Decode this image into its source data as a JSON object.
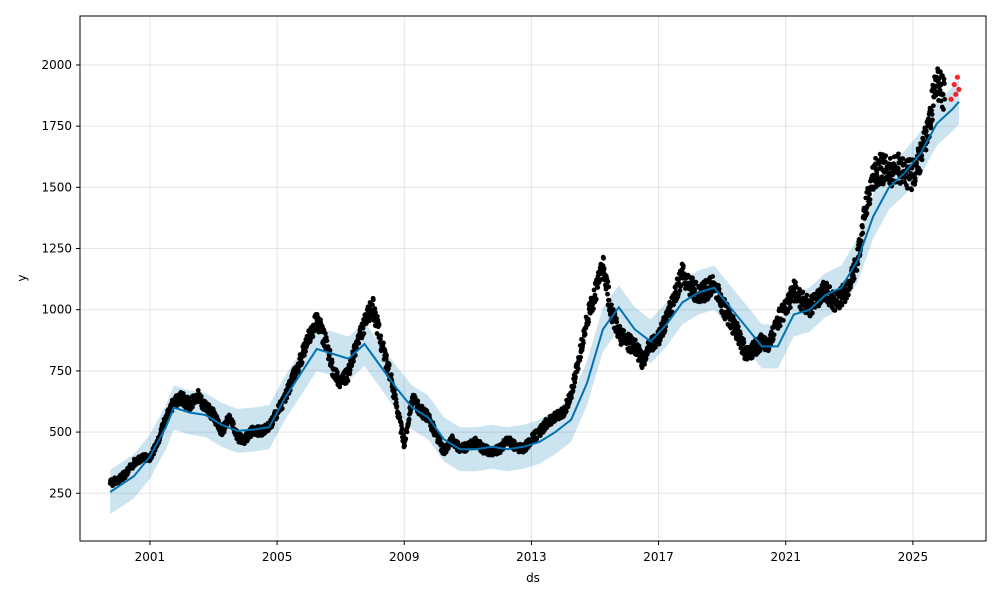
{
  "chart_data": {
    "type": "scatter",
    "title": "",
    "xlabel": "ds",
    "ylabel": "y",
    "xlim": [
      1998.8,
      2027.3
    ],
    "ylim": [
      55,
      2200
    ],
    "grid": true,
    "x_ticks": [
      "2001",
      "2005",
      "2009",
      "2013",
      "2017",
      "2021",
      "2025"
    ],
    "y_ticks": [
      "250",
      "500",
      "750",
      "1000",
      "1250",
      "1500",
      "1750",
      "2000"
    ],
    "colors": {
      "observed": "#000000",
      "forecast_points": "#ff0000",
      "trend_line": "#0072b2",
      "uncertainty_band": "#0072b2"
    },
    "series": [
      {
        "role": "observed",
        "marker": "dot",
        "points": [
          [
            1999.75,
            290
          ],
          [
            2000.0,
            305
          ],
          [
            2000.25,
            330
          ],
          [
            2000.5,
            375
          ],
          [
            2000.75,
            395
          ],
          [
            2001.0,
            395
          ],
          [
            2001.25,
            460
          ],
          [
            2001.5,
            560
          ],
          [
            2001.75,
            620
          ],
          [
            2002.0,
            640
          ],
          [
            2002.25,
            610
          ],
          [
            2002.5,
            650
          ],
          [
            2002.75,
            600
          ],
          [
            2003.0,
            570
          ],
          [
            2003.25,
            500
          ],
          [
            2003.5,
            560
          ],
          [
            2003.75,
            480
          ],
          [
            2004.0,
            470
          ],
          [
            2004.25,
            510
          ],
          [
            2004.5,
            500
          ],
          [
            2004.75,
            520
          ],
          [
            2005.0,
            580
          ],
          [
            2005.25,
            640
          ],
          [
            2005.5,
            720
          ],
          [
            2005.75,
            800
          ],
          [
            2006.0,
            890
          ],
          [
            2006.25,
            960
          ],
          [
            2006.5,
            880
          ],
          [
            2006.75,
            760
          ],
          [
            2007.0,
            700
          ],
          [
            2007.25,
            740
          ],
          [
            2007.5,
            860
          ],
          [
            2007.75,
            940
          ],
          [
            2008.0,
            1020
          ],
          [
            2008.25,
            880
          ],
          [
            2008.5,
            760
          ],
          [
            2008.75,
            620
          ],
          [
            2009.0,
            450
          ],
          [
            2009.25,
            640
          ],
          [
            2009.5,
            590
          ],
          [
            2009.75,
            560
          ],
          [
            2010.0,
            490
          ],
          [
            2010.25,
            420
          ],
          [
            2010.5,
            470
          ],
          [
            2010.75,
            430
          ],
          [
            2011.0,
            440
          ],
          [
            2011.25,
            460
          ],
          [
            2011.5,
            430
          ],
          [
            2011.75,
            420
          ],
          [
            2012.0,
            430
          ],
          [
            2012.25,
            470
          ],
          [
            2012.5,
            440
          ],
          [
            2012.75,
            430
          ],
          [
            2013.0,
            470
          ],
          [
            2013.25,
            500
          ],
          [
            2013.5,
            540
          ],
          [
            2013.75,
            560
          ],
          [
            2014.0,
            580
          ],
          [
            2014.25,
            650
          ],
          [
            2014.5,
            800
          ],
          [
            2014.75,
            960
          ],
          [
            2015.0,
            1060
          ],
          [
            2015.25,
            1180
          ],
          [
            2015.5,
            1000
          ],
          [
            2015.75,
            900
          ],
          [
            2016.0,
            870
          ],
          [
            2016.25,
            850
          ],
          [
            2016.5,
            790
          ],
          [
            2016.75,
            860
          ],
          [
            2017.0,
            880
          ],
          [
            2017.25,
            960
          ],
          [
            2017.5,
            1050
          ],
          [
            2017.75,
            1150
          ],
          [
            2018.0,
            1100
          ],
          [
            2018.25,
            1060
          ],
          [
            2018.5,
            1080
          ],
          [
            2018.75,
            1100
          ],
          [
            2019.0,
            1020
          ],
          [
            2019.25,
            960
          ],
          [
            2019.5,
            900
          ],
          [
            2019.75,
            820
          ],
          [
            2020.0,
            840
          ],
          [
            2020.25,
            870
          ],
          [
            2020.5,
            860
          ],
          [
            2020.75,
            960
          ],
          [
            2021.0,
            1000
          ],
          [
            2021.25,
            1080
          ],
          [
            2021.5,
            1040
          ],
          [
            2021.75,
            1010
          ],
          [
            2022.0,
            1050
          ],
          [
            2022.25,
            1080
          ],
          [
            2022.5,
            1030
          ],
          [
            2022.75,
            1050
          ],
          [
            2023.0,
            1100
          ],
          [
            2023.25,
            1200
          ],
          [
            2023.5,
            1400
          ],
          [
            2023.75,
            1550
          ],
          [
            2024.0,
            1580
          ],
          [
            2024.25,
            1560
          ],
          [
            2024.5,
            1580
          ],
          [
            2024.75,
            1560
          ],
          [
            2025.0,
            1550
          ],
          [
            2025.25,
            1620
          ],
          [
            2025.5,
            1750
          ],
          [
            2025.75,
            1950
          ],
          [
            2026.0,
            1860
          ]
        ]
      },
      {
        "role": "forecast_points",
        "marker": "dot",
        "points": [
          [
            2026.2,
            1860
          ],
          [
            2026.3,
            1920
          ],
          [
            2026.35,
            1880
          ],
          [
            2026.4,
            1950
          ],
          [
            2026.45,
            1900
          ]
        ]
      },
      {
        "role": "trend_line",
        "marker": "line",
        "points": [
          [
            1999.75,
            255
          ],
          [
            2000.5,
            320
          ],
          [
            2001.0,
            400
          ],
          [
            2001.5,
            520
          ],
          [
            2001.75,
            600
          ],
          [
            2002.25,
            580
          ],
          [
            2002.75,
            570
          ],
          [
            2003.25,
            530
          ],
          [
            2003.75,
            505
          ],
          [
            2004.25,
            510
          ],
          [
            2004.75,
            520
          ],
          [
            2005.25,
            640
          ],
          [
            2005.75,
            740
          ],
          [
            2006.25,
            840
          ],
          [
            2006.75,
            820
          ],
          [
            2007.25,
            800
          ],
          [
            2007.75,
            860
          ],
          [
            2008.25,
            770
          ],
          [
            2008.75,
            680
          ],
          [
            2009.25,
            600
          ],
          [
            2009.75,
            560
          ],
          [
            2010.25,
            470
          ],
          [
            2010.75,
            430
          ],
          [
            2011.25,
            430
          ],
          [
            2011.75,
            440
          ],
          [
            2012.25,
            430
          ],
          [
            2012.75,
            440
          ],
          [
            2013.25,
            460
          ],
          [
            2013.75,
            500
          ],
          [
            2014.25,
            550
          ],
          [
            2014.75,
            700
          ],
          [
            2015.25,
            920
          ],
          [
            2015.75,
            1010
          ],
          [
            2016.25,
            920
          ],
          [
            2016.75,
            870
          ],
          [
            2017.25,
            940
          ],
          [
            2017.75,
            1030
          ],
          [
            2018.25,
            1070
          ],
          [
            2018.75,
            1090
          ],
          [
            2019.25,
            1010
          ],
          [
            2019.75,
            930
          ],
          [
            2020.25,
            850
          ],
          [
            2020.75,
            850
          ],
          [
            2021.25,
            980
          ],
          [
            2021.75,
            1000
          ],
          [
            2022.25,
            1060
          ],
          [
            2022.75,
            1090
          ],
          [
            2023.25,
            1200
          ],
          [
            2023.75,
            1380
          ],
          [
            2024.25,
            1500
          ],
          [
            2024.75,
            1560
          ],
          [
            2025.25,
            1640
          ],
          [
            2025.75,
            1760
          ],
          [
            2026.25,
            1820
          ],
          [
            2026.45,
            1850
          ]
        ]
      },
      {
        "role": "uncertainty_band",
        "marker": "band",
        "offset": 90
      }
    ]
  }
}
